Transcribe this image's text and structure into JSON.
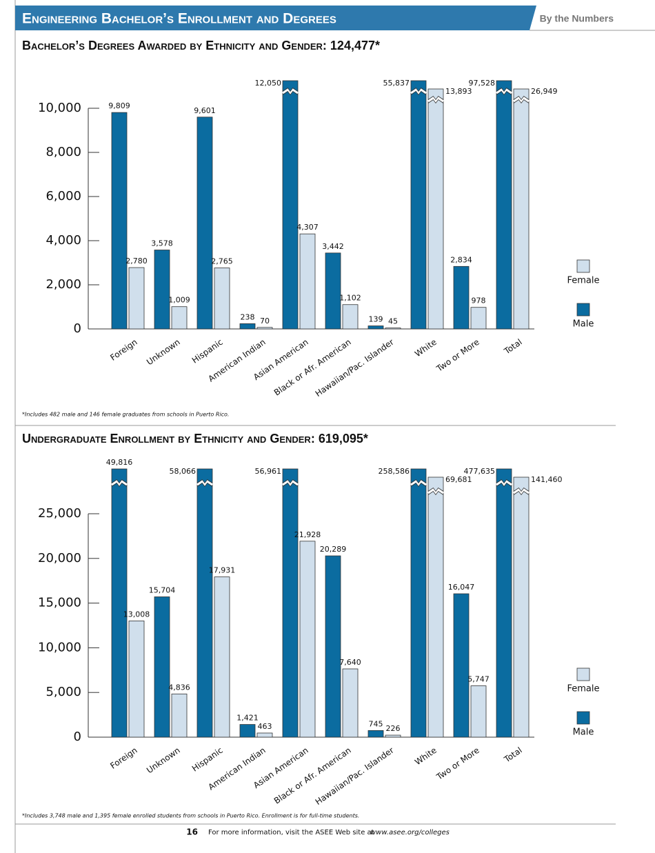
{
  "header": {
    "title": "Engineering Bachelor’s Enrollment and Degrees",
    "section": "By the Numbers"
  },
  "chart_data": [
    {
      "type": "bar",
      "title": "Bachelor’s Degrees Awarded by Ethnicity and Gender: 124,477*",
      "categories": [
        "Foreign",
        "Unknown",
        "Hispanic",
        "American Indian",
        "Asian American",
        "Black or Afr. American",
        "Hawaiian/Pac. Islander",
        "White",
        "Two or More",
        "Total"
      ],
      "series": [
        {
          "name": "Male",
          "color": "#0b6ca0",
          "values": [
            9809,
            3578,
            9601,
            238,
            12050,
            3442,
            139,
            55837,
            2834,
            97528
          ],
          "value_labels": [
            "9,809",
            "3,578",
            "9,601",
            "238",
            "12,050",
            "3,442",
            "139",
            "55,837",
            "2,834",
            "97,528"
          ]
        },
        {
          "name": "Female",
          "color": "#d0dfec",
          "values": [
            2780,
            1009,
            2765,
            70,
            4307,
            1102,
            45,
            13893,
            978,
            26949
          ],
          "value_labels": [
            "2,780",
            "1,009",
            "2,765",
            "70",
            "4,307",
            "1,102",
            "45",
            "13,893",
            "978",
            "26,949"
          ]
        }
      ],
      "ylim": [
        0,
        10000
      ],
      "yticks": [
        0,
        {
          "value": 2000,
          "label": "2,000"
        },
        {
          "value": 4000,
          "label": "4,000"
        },
        {
          "value": 6000,
          "label": "6,000"
        },
        {
          "value": 8000,
          "label": "8,000"
        },
        {
          "value": 10000,
          "label": "10,000"
        }
      ],
      "footnote": "*Includes 482 male and 146 female graduates from schools in Puerto Rico."
    },
    {
      "type": "bar",
      "title": "Undergraduate Enrollment by Ethnicity and Gender: 619,095*",
      "categories": [
        "Foreign",
        "Unknown",
        "Hispanic",
        "American Indian",
        "Asian American",
        "Black or Afr. American",
        "Hawaiian/Pac. Islander",
        "White",
        "Two or More",
        "Total"
      ],
      "series": [
        {
          "name": "Male",
          "color": "#0b6ca0",
          "values": [
            49816,
            15704,
            58066,
            1421,
            56961,
            20289,
            745,
            258586,
            16047,
            477635
          ],
          "value_labels": [
            "49,816",
            "15,704",
            "58,066",
            "1,421",
            "56,961",
            "20,289",
            "745",
            "258,586",
            "16,047",
            "477,635"
          ]
        },
        {
          "name": "Female",
          "color": "#d0dfec",
          "values": [
            13008,
            4836,
            17931,
            463,
            21928,
            7640,
            226,
            69681,
            5747,
            141460
          ],
          "value_labels": [
            "13,008",
            "4,836",
            "17,931",
            "463",
            "21,928",
            "7,640",
            "226",
            "69,681",
            "5,747",
            "141,460"
          ]
        }
      ],
      "ylim": [
        0,
        25000
      ],
      "yticks": [
        0,
        {
          "value": 5000,
          "label": "5,000"
        },
        {
          "value": 10000,
          "label": "10,000"
        },
        {
          "value": 15000,
          "label": "15,000"
        },
        {
          "value": 20000,
          "label": "20,000"
        },
        {
          "value": 25000,
          "label": "25,000"
        }
      ],
      "footnote": "*Includes 3,748 male and 1,395 female enrolled students from schools in Puerto Rico. Enrollment is for full-time students."
    }
  ],
  "footer": {
    "page": "16",
    "text": "For more information, visit the ASEE Web site at",
    "url": "www.asee.org/colleges"
  }
}
